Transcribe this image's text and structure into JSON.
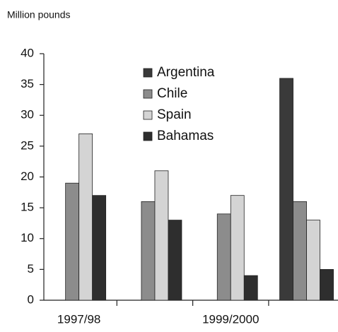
{
  "chart_data": {
    "type": "bar",
    "y_label": "Million pounds",
    "categories": [
      "1997/98",
      null,
      "1999/2000",
      null
    ],
    "series": [
      {
        "name": "Argentina",
        "color": "#3a3a3a",
        "values": [
          null,
          null,
          null,
          36
        ]
      },
      {
        "name": "Chile",
        "color": "#8c8c8c",
        "values": [
          19,
          16,
          14,
          16
        ]
      },
      {
        "name": "Spain",
        "color": "#d4d4d4",
        "values": [
          27,
          21,
          17,
          13
        ]
      },
      {
        "name": "Bahamas",
        "color": "#2e2e2e",
        "values": [
          17,
          13,
          4,
          5
        ]
      }
    ],
    "ylim": [
      0,
      40
    ],
    "yticks": [
      0,
      5,
      10,
      15,
      20,
      25,
      30,
      35,
      40
    ],
    "grid": false
  }
}
